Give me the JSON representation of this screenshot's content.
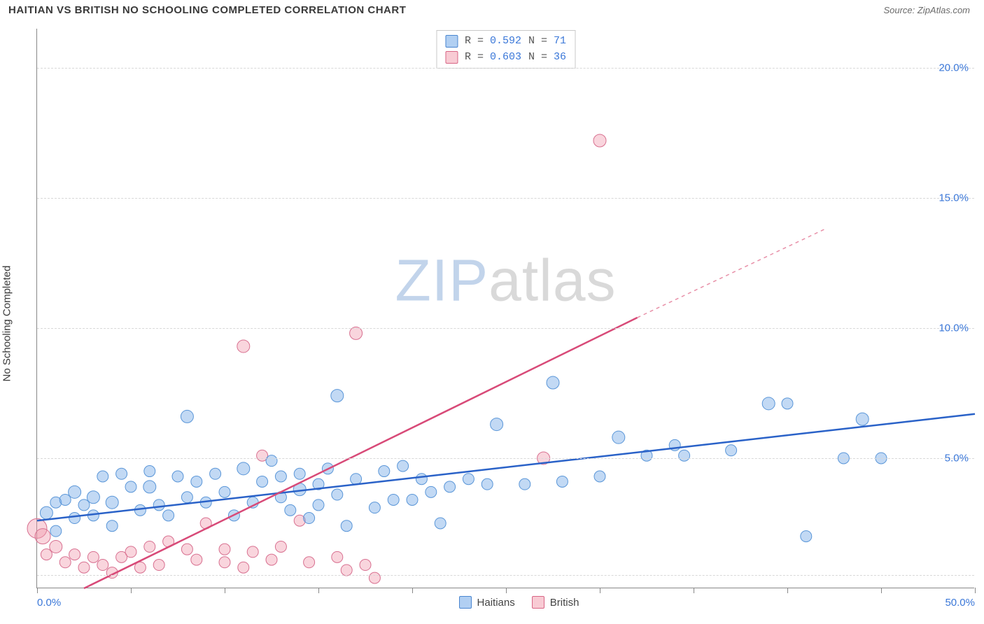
{
  "title": "HAITIAN VS BRITISH NO SCHOOLING COMPLETED CORRELATION CHART",
  "source": "Source: ZipAtlas.com",
  "y_axis_label": "No Schooling Completed",
  "watermark": {
    "zip": "ZIP",
    "atlas": "atlas"
  },
  "chart": {
    "type": "scatter",
    "xlim": [
      0,
      50
    ],
    "ylim": [
      0,
      21.5
    ],
    "x_ticks": [
      0,
      5,
      10,
      15,
      20,
      25,
      30,
      35,
      40,
      45,
      50
    ],
    "x_tick_labels": {
      "0": "0.0%",
      "50": "50.0%"
    },
    "y_ticks": [
      5,
      10,
      15,
      20
    ],
    "y_tick_labels": [
      "5.0%",
      "10.0%",
      "15.0%",
      "20.0%"
    ],
    "grid_y": [
      0.5,
      5,
      10,
      15,
      20
    ],
    "background_color": "#ffffff",
    "grid_color": "#d8d8d8",
    "text_color": "#3a3a3a",
    "axis_color": "#888888",
    "tick_label_color": "#3a77d8",
    "series": {
      "haitians": {
        "label": "Haitians",
        "color_fill": "rgba(120,170,230,0.45)",
        "color_stroke": "#5a96d8",
        "trend_color": "#2a62c8",
        "R": "0.592",
        "N": "71",
        "trend": {
          "x1": 0,
          "y1": 2.6,
          "x2": 50,
          "y2": 6.7
        },
        "points": [
          {
            "x": 0.5,
            "y": 2.9,
            "r": 9
          },
          {
            "x": 1,
            "y": 3.3,
            "r": 8
          },
          {
            "x": 1,
            "y": 2.2,
            "r": 8
          },
          {
            "x": 1.5,
            "y": 3.4,
            "r": 8
          },
          {
            "x": 2,
            "y": 3.7,
            "r": 9
          },
          {
            "x": 2,
            "y": 2.7,
            "r": 8
          },
          {
            "x": 2.5,
            "y": 3.2,
            "r": 8
          },
          {
            "x": 3,
            "y": 3.5,
            "r": 9
          },
          {
            "x": 3,
            "y": 2.8,
            "r": 8
          },
          {
            "x": 3.5,
            "y": 4.3,
            "r": 8
          },
          {
            "x": 4,
            "y": 3.3,
            "r": 9
          },
          {
            "x": 4,
            "y": 2.4,
            "r": 8
          },
          {
            "x": 4.5,
            "y": 4.4,
            "r": 8
          },
          {
            "x": 5,
            "y": 3.9,
            "r": 8
          },
          {
            "x": 5.5,
            "y": 3.0,
            "r": 8
          },
          {
            "x": 6,
            "y": 3.9,
            "r": 9
          },
          {
            "x": 6,
            "y": 4.5,
            "r": 8
          },
          {
            "x": 6.5,
            "y": 3.2,
            "r": 8
          },
          {
            "x": 7,
            "y": 2.8,
            "r": 8
          },
          {
            "x": 7.5,
            "y": 4.3,
            "r": 8
          },
          {
            "x": 8,
            "y": 6.6,
            "r": 9
          },
          {
            "x": 8,
            "y": 3.5,
            "r": 8
          },
          {
            "x": 8.5,
            "y": 4.1,
            "r": 8
          },
          {
            "x": 9,
            "y": 3.3,
            "r": 8
          },
          {
            "x": 9.5,
            "y": 4.4,
            "r": 8
          },
          {
            "x": 10,
            "y": 3.7,
            "r": 8
          },
          {
            "x": 10.5,
            "y": 2.8,
            "r": 8
          },
          {
            "x": 11,
            "y": 4.6,
            "r": 9
          },
          {
            "x": 11.5,
            "y": 3.3,
            "r": 8
          },
          {
            "x": 12,
            "y": 4.1,
            "r": 8
          },
          {
            "x": 12.5,
            "y": 4.9,
            "r": 8
          },
          {
            "x": 13,
            "y": 3.5,
            "r": 8
          },
          {
            "x": 13,
            "y": 4.3,
            "r": 8
          },
          {
            "x": 13.5,
            "y": 3.0,
            "r": 8
          },
          {
            "x": 14,
            "y": 3.8,
            "r": 9
          },
          {
            "x": 14,
            "y": 4.4,
            "r": 8
          },
          {
            "x": 14.5,
            "y": 2.7,
            "r": 8
          },
          {
            "x": 15,
            "y": 4.0,
            "r": 8
          },
          {
            "x": 15,
            "y": 3.2,
            "r": 8
          },
          {
            "x": 15.5,
            "y": 4.6,
            "r": 8
          },
          {
            "x": 16,
            "y": 7.4,
            "r": 9
          },
          {
            "x": 16,
            "y": 3.6,
            "r": 8
          },
          {
            "x": 16.5,
            "y": 2.4,
            "r": 8
          },
          {
            "x": 17,
            "y": 4.2,
            "r": 8
          },
          {
            "x": 18,
            "y": 3.1,
            "r": 8
          },
          {
            "x": 18.5,
            "y": 4.5,
            "r": 8
          },
          {
            "x": 19,
            "y": 3.4,
            "r": 8
          },
          {
            "x": 19.5,
            "y": 4.7,
            "r": 8
          },
          {
            "x": 20,
            "y": 3.4,
            "r": 8
          },
          {
            "x": 20.5,
            "y": 4.2,
            "r": 8
          },
          {
            "x": 21,
            "y": 3.7,
            "r": 8
          },
          {
            "x": 21.5,
            "y": 2.5,
            "r": 8
          },
          {
            "x": 22,
            "y": 3.9,
            "r": 8
          },
          {
            "x": 23,
            "y": 4.2,
            "r": 8
          },
          {
            "x": 24,
            "y": 4.0,
            "r": 8
          },
          {
            "x": 24.5,
            "y": 6.3,
            "r": 9
          },
          {
            "x": 26,
            "y": 4.0,
            "r": 8
          },
          {
            "x": 27.5,
            "y": 7.9,
            "r": 9
          },
          {
            "x": 28,
            "y": 4.1,
            "r": 8
          },
          {
            "x": 30,
            "y": 4.3,
            "r": 8
          },
          {
            "x": 31,
            "y": 5.8,
            "r": 9
          },
          {
            "x": 32.5,
            "y": 5.1,
            "r": 8
          },
          {
            "x": 34,
            "y": 5.5,
            "r": 8
          },
          {
            "x": 34.5,
            "y": 5.1,
            "r": 8
          },
          {
            "x": 37,
            "y": 5.3,
            "r": 8
          },
          {
            "x": 39,
            "y": 7.1,
            "r": 9
          },
          {
            "x": 40,
            "y": 7.1,
            "r": 8
          },
          {
            "x": 41,
            "y": 2.0,
            "r": 8
          },
          {
            "x": 43,
            "y": 5.0,
            "r": 8
          },
          {
            "x": 44,
            "y": 6.5,
            "r": 9
          },
          {
            "x": 45,
            "y": 5.0,
            "r": 8
          }
        ]
      },
      "british": {
        "label": "British",
        "color_fill": "rgba(240,150,170,0.4)",
        "color_stroke": "#d87090",
        "trend_color": "#d84a78",
        "R": "0.603",
        "N": "36",
        "trend_solid": {
          "x1": 2.5,
          "y1": 0,
          "x2": 32,
          "y2": 10.4
        },
        "trend_dash": {
          "x1": 32,
          "y1": 10.4,
          "x2": 42,
          "y2": 13.8
        },
        "points": [
          {
            "x": 0,
            "y": 2.3,
            "r": 14
          },
          {
            "x": 0.3,
            "y": 2.0,
            "r": 11
          },
          {
            "x": 0.5,
            "y": 1.3,
            "r": 8
          },
          {
            "x": 1,
            "y": 1.6,
            "r": 9
          },
          {
            "x": 1.5,
            "y": 1.0,
            "r": 8
          },
          {
            "x": 2,
            "y": 1.3,
            "r": 8
          },
          {
            "x": 2.5,
            "y": 0.8,
            "r": 8
          },
          {
            "x": 3,
            "y": 1.2,
            "r": 8
          },
          {
            "x": 3.5,
            "y": 0.9,
            "r": 8
          },
          {
            "x": 4,
            "y": 0.6,
            "r": 8
          },
          {
            "x": 4.5,
            "y": 1.2,
            "r": 8
          },
          {
            "x": 5,
            "y": 1.4,
            "r": 8
          },
          {
            "x": 5.5,
            "y": 0.8,
            "r": 8
          },
          {
            "x": 6,
            "y": 1.6,
            "r": 8
          },
          {
            "x": 6.5,
            "y": 0.9,
            "r": 8
          },
          {
            "x": 7,
            "y": 1.8,
            "r": 8
          },
          {
            "x": 8,
            "y": 1.5,
            "r": 8
          },
          {
            "x": 8.5,
            "y": 1.1,
            "r": 8
          },
          {
            "x": 9,
            "y": 2.5,
            "r": 8
          },
          {
            "x": 10,
            "y": 1.0,
            "r": 8
          },
          {
            "x": 10,
            "y": 1.5,
            "r": 8
          },
          {
            "x": 11,
            "y": 0.8,
            "r": 8
          },
          {
            "x": 11,
            "y": 9.3,
            "r": 9
          },
          {
            "x": 11.5,
            "y": 1.4,
            "r": 8
          },
          {
            "x": 12,
            "y": 5.1,
            "r": 8
          },
          {
            "x": 12.5,
            "y": 1.1,
            "r": 8
          },
          {
            "x": 13,
            "y": 1.6,
            "r": 8
          },
          {
            "x": 14,
            "y": 2.6,
            "r": 8
          },
          {
            "x": 14.5,
            "y": 1.0,
            "r": 8
          },
          {
            "x": 16,
            "y": 1.2,
            "r": 8
          },
          {
            "x": 16.5,
            "y": 0.7,
            "r": 8
          },
          {
            "x": 17,
            "y": 9.8,
            "r": 9
          },
          {
            "x": 17.5,
            "y": 0.9,
            "r": 8
          },
          {
            "x": 18,
            "y": 0.4,
            "r": 8
          },
          {
            "x": 27,
            "y": 5.0,
            "r": 9
          },
          {
            "x": 30,
            "y": 17.2,
            "r": 9
          }
        ]
      }
    },
    "legend_top": [
      {
        "swatch": "blue",
        "R_label": "R = ",
        "R": "0.592",
        "N_label": "N = ",
        "N": "71"
      },
      {
        "swatch": "pink",
        "R_label": "R = ",
        "R": "0.603",
        "N_label": "N = ",
        "N": "36"
      }
    ],
    "legend_bottom": [
      {
        "swatch": "blue",
        "label": "Haitians"
      },
      {
        "swatch": "pink",
        "label": "British"
      }
    ]
  }
}
